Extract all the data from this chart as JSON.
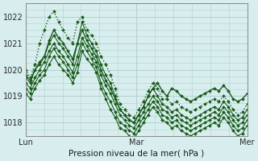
{
  "bg_color": "#d8eeee",
  "grid_color": "#b0d0d0",
  "line_color": "#1a5c1a",
  "title": "Pression niveau de la mer( hPa )",
  "ylim": [
    1017.5,
    1022.5
  ],
  "xlim": [
    0,
    48
  ],
  "yticks": [
    1018,
    1019,
    1020,
    1021,
    1022
  ],
  "xticks": [
    0,
    24,
    48
  ],
  "xtick_labels": [
    "Lun",
    "Mar",
    "Mer"
  ],
  "series": [
    [
      1020.0,
      1019.7,
      1020.2,
      1021.0,
      1021.5,
      1022.0,
      1022.2,
      1021.8,
      1021.5,
      1021.2,
      1021.0,
      1021.8,
      1022.0,
      1021.5,
      1021.3,
      1021.0,
      1020.5,
      1020.2,
      1019.8,
      1019.3,
      1018.7,
      1018.5,
      1018.3,
      1018.2,
      1018.5,
      1018.8,
      1019.2,
      1019.5,
      1019.3,
      1018.9,
      1018.9,
      1018.7,
      1018.8,
      1018.6,
      1018.5,
      1018.4,
      1018.5,
      1018.6,
      1018.7,
      1018.8,
      1018.9,
      1018.8,
      1019.0,
      1018.8,
      1018.5,
      1018.3,
      1018.4,
      1018.7
    ],
    [
      1019.7,
      1019.5,
      1020.0,
      1020.3,
      1020.5,
      1021.0,
      1021.3,
      1021.0,
      1020.8,
      1020.5,
      1020.2,
      1021.0,
      1021.8,
      1021.3,
      1021.0,
      1020.7,
      1020.2,
      1019.8,
      1019.5,
      1019.0,
      1018.5,
      1018.3,
      1018.1,
      1018.0,
      1018.3,
      1018.6,
      1019.0,
      1019.3,
      1019.0,
      1018.7,
      1018.6,
      1018.4,
      1018.5,
      1018.3,
      1018.2,
      1018.1,
      1018.2,
      1018.3,
      1018.4,
      1018.5,
      1018.6,
      1018.5,
      1018.8,
      1018.6,
      1018.3,
      1018.1,
      1018.2,
      1018.5
    ],
    [
      1019.5,
      1019.3,
      1019.7,
      1020.0,
      1020.3,
      1020.7,
      1021.0,
      1020.7,
      1020.5,
      1020.2,
      1019.9,
      1020.5,
      1021.2,
      1020.9,
      1020.6,
      1020.3,
      1019.8,
      1019.4,
      1019.1,
      1018.7,
      1018.3,
      1018.1,
      1017.9,
      1017.8,
      1018.1,
      1018.4,
      1018.7,
      1019.0,
      1018.8,
      1018.5,
      1018.4,
      1018.2,
      1018.3,
      1018.1,
      1018.0,
      1017.9,
      1018.0,
      1018.1,
      1018.2,
      1018.3,
      1018.4,
      1018.3,
      1018.6,
      1018.4,
      1018.1,
      1017.9,
      1018.0,
      1018.3
    ],
    [
      1019.3,
      1019.1,
      1019.5,
      1019.8,
      1020.0,
      1020.5,
      1020.8,
      1020.5,
      1020.3,
      1020.0,
      1019.7,
      1020.2,
      1021.0,
      1020.7,
      1020.4,
      1020.1,
      1019.5,
      1019.1,
      1018.8,
      1018.4,
      1018.0,
      1017.9,
      1017.7,
      1017.6,
      1017.9,
      1018.2,
      1018.5,
      1018.8,
      1018.6,
      1018.3,
      1018.2,
      1018.0,
      1018.1,
      1017.9,
      1017.8,
      1017.7,
      1017.8,
      1017.9,
      1018.0,
      1018.1,
      1018.2,
      1018.1,
      1018.4,
      1018.2,
      1017.9,
      1017.7,
      1017.8,
      1018.1
    ],
    [
      1019.1,
      1018.9,
      1019.3,
      1019.6,
      1019.8,
      1020.2,
      1020.5,
      1020.2,
      1020.0,
      1019.8,
      1019.5,
      1019.9,
      1020.7,
      1020.4,
      1020.2,
      1019.9,
      1019.3,
      1018.9,
      1018.5,
      1018.2,
      1017.8,
      1017.7,
      1017.5,
      1017.4,
      1017.7,
      1018.0,
      1018.3,
      1018.6,
      1018.4,
      1018.1,
      1018.0,
      1017.8,
      1017.9,
      1017.7,
      1017.6,
      1017.5,
      1017.6,
      1017.7,
      1017.8,
      1017.9,
      1018.0,
      1017.9,
      1018.2,
      1018.0,
      1017.7,
      1017.5,
      1017.6,
      1017.9
    ],
    [
      1019.8,
      1019.6,
      1020.0,
      1020.2,
      1020.5,
      1021.1,
      1021.5,
      1021.2,
      1021.0,
      1020.7,
      1020.4,
      1021.0,
      1021.5,
      1021.1,
      1020.8,
      1020.5,
      1020.0,
      1019.6,
      1019.3,
      1018.9,
      1018.5,
      1018.3,
      1018.1,
      1018.0,
      1018.3,
      1018.6,
      1019.0,
      1019.3,
      1019.5,
      1019.2,
      1019.0,
      1019.3,
      1019.2,
      1019.0,
      1018.9,
      1018.8,
      1018.9,
      1019.0,
      1019.1,
      1019.2,
      1019.3,
      1019.2,
      1019.4,
      1019.2,
      1018.9,
      1018.8,
      1018.9,
      1019.1
    ]
  ],
  "series_linestyles": [
    ":",
    "-",
    "-",
    "-",
    "-",
    "-"
  ],
  "series_linewidths": [
    1.0,
    0.8,
    0.8,
    0.8,
    0.8,
    1.0
  ]
}
